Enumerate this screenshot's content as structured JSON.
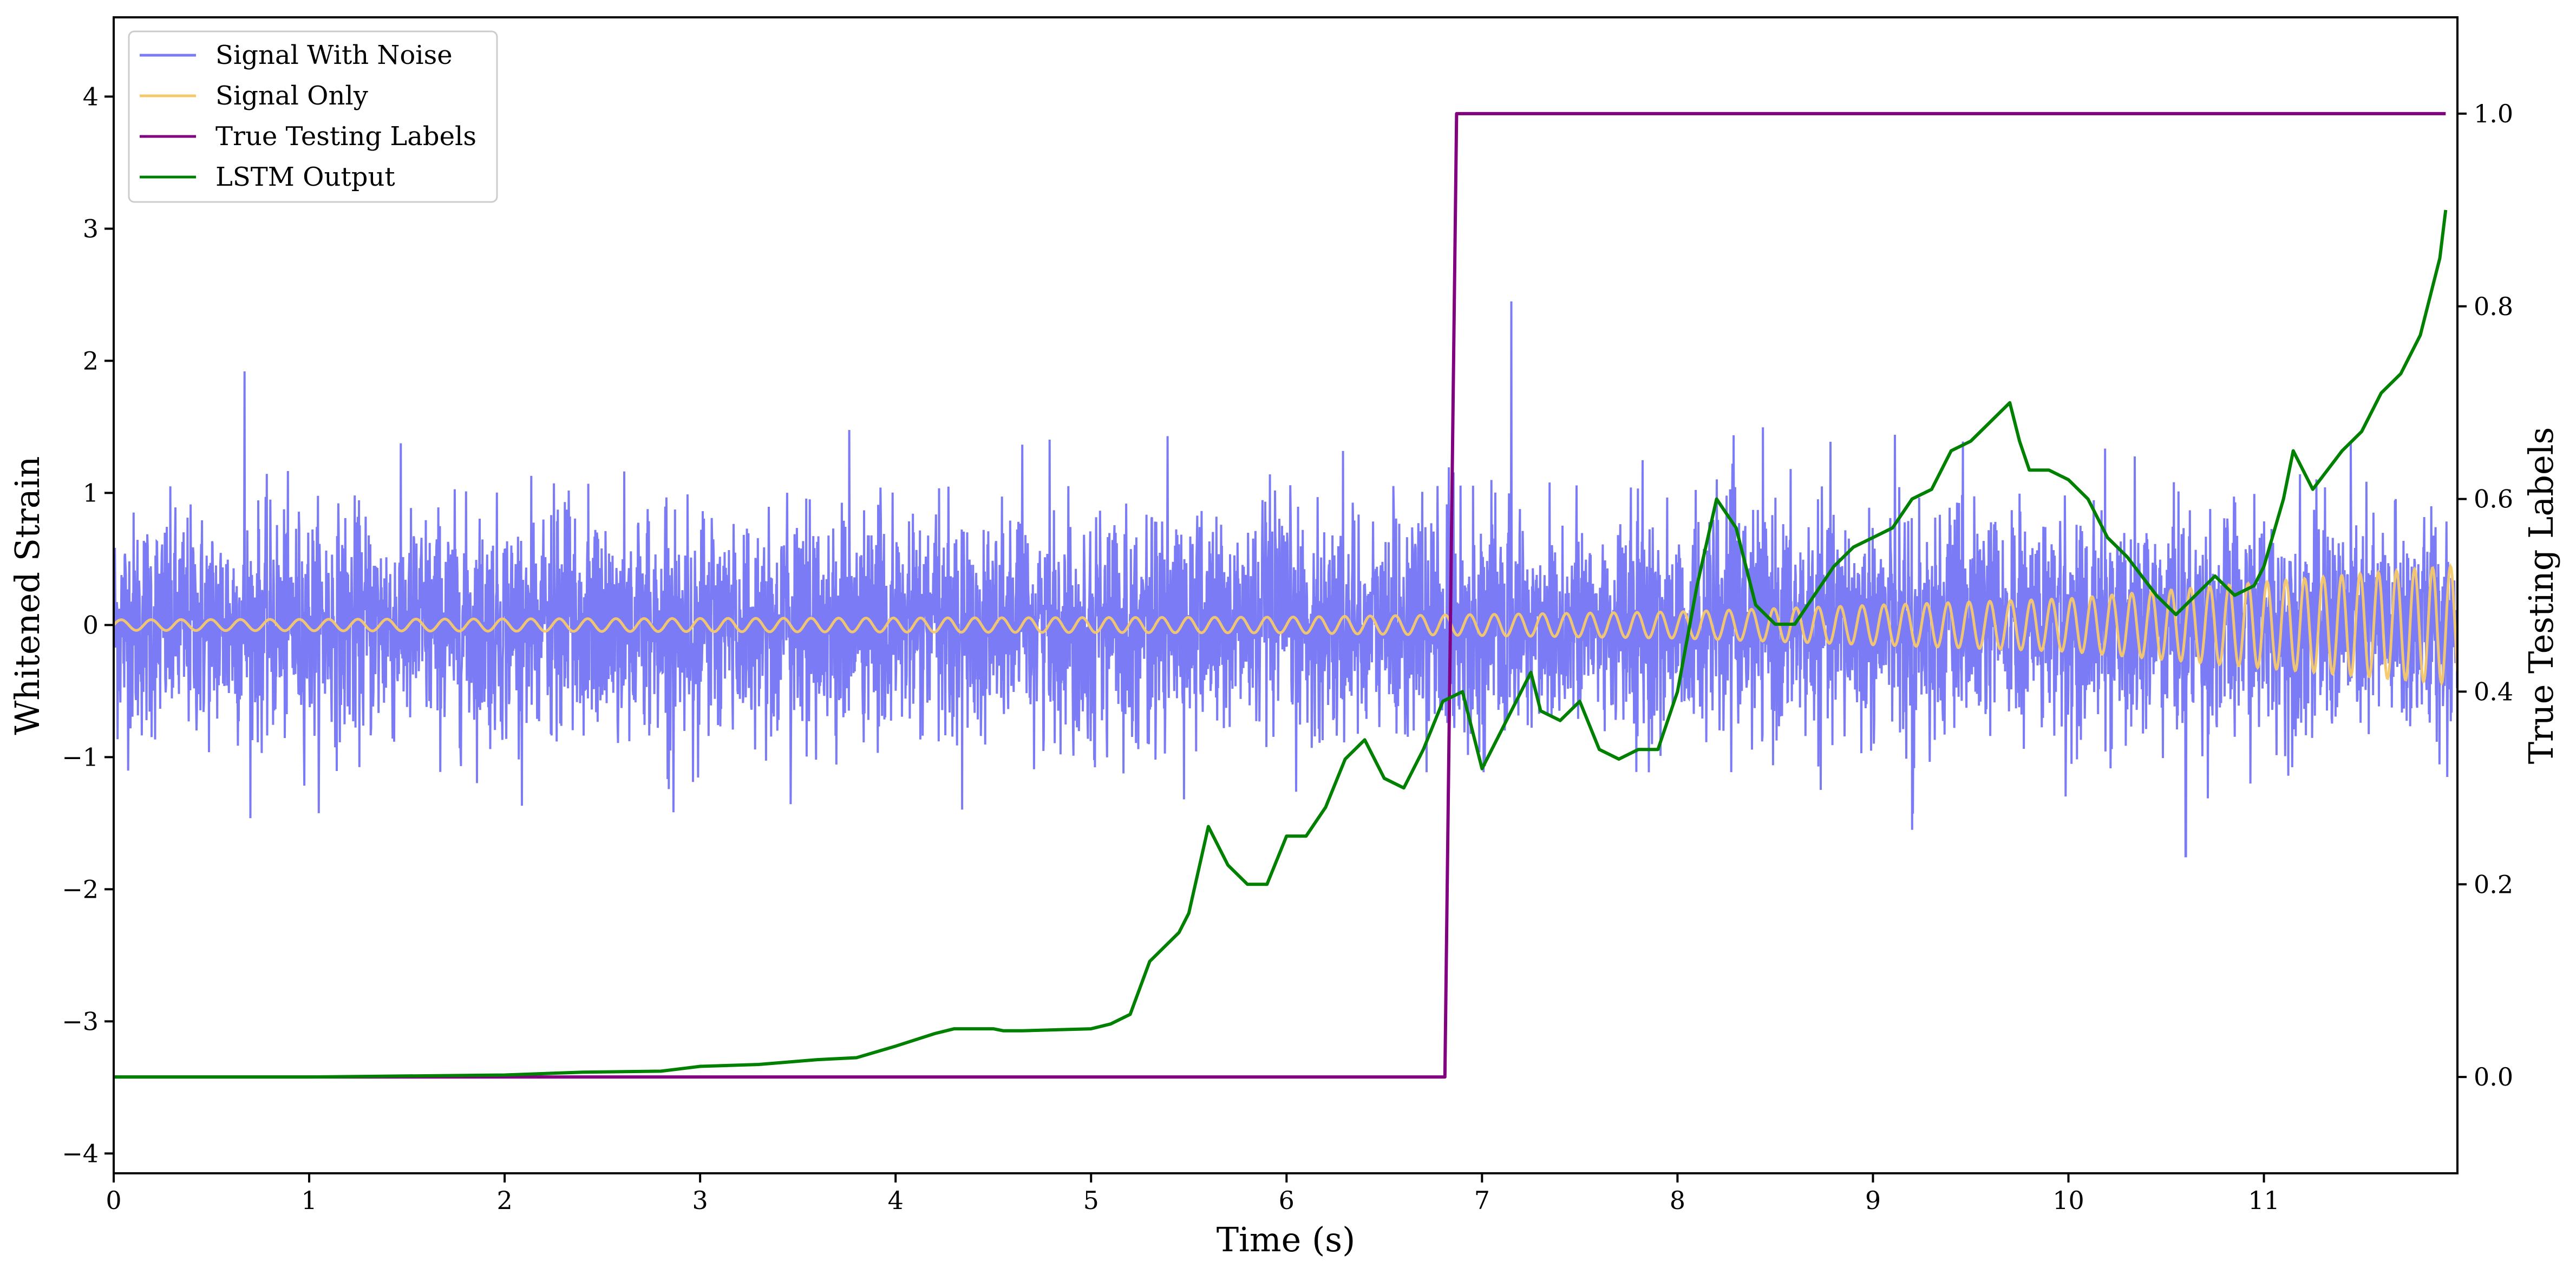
{
  "chart_data": {
    "type": "line",
    "xlabel": "Time (s)",
    "ylabel_left": "Whitened Strain",
    "ylabel_right": "True Testing Labels",
    "xlim": [
      0,
      11.99
    ],
    "ylim_left": [
      -4.15,
      4.6
    ],
    "ylim_right": [
      -0.1,
      1.1
    ],
    "x_ticks": [
      {
        "value": 0,
        "label": "0"
      },
      {
        "value": 1,
        "label": "1"
      },
      {
        "value": 2,
        "label": "2"
      },
      {
        "value": 3,
        "label": "3"
      },
      {
        "value": 4,
        "label": "4"
      },
      {
        "value": 5,
        "label": "5"
      },
      {
        "value": 6,
        "label": "6"
      },
      {
        "value": 7,
        "label": "7"
      },
      {
        "value": 8,
        "label": "8"
      },
      {
        "value": 9,
        "label": "9"
      },
      {
        "value": 10,
        "label": "10"
      },
      {
        "value": 11,
        "label": "11"
      }
    ],
    "y_ticks_left": [
      {
        "value": -4,
        "label": "−4"
      },
      {
        "value": -3,
        "label": "−3"
      },
      {
        "value": -2,
        "label": "−2"
      },
      {
        "value": -1,
        "label": "−1"
      },
      {
        "value": 0,
        "label": "0"
      },
      {
        "value": 1,
        "label": "1"
      },
      {
        "value": 2,
        "label": "2"
      },
      {
        "value": 3,
        "label": "3"
      },
      {
        "value": 4,
        "label": "4"
      }
    ],
    "y_ticks_right": [
      {
        "value": 0.0,
        "label": "0.0"
      },
      {
        "value": 0.2,
        "label": "0.2"
      },
      {
        "value": 0.4,
        "label": "0.4"
      },
      {
        "value": 0.6,
        "label": "0.6"
      },
      {
        "value": 0.8,
        "label": "0.8"
      },
      {
        "value": 1.0,
        "label": "1.0"
      }
    ],
    "grid": false,
    "legend_position": "top-left",
    "series": [
      {
        "name": "Signal With Noise",
        "axis": "left",
        "color": "#7b7bf5",
        "kind": "noise",
        "std": 0.42,
        "envelope_max": 1.5,
        "notable_spikes": [
          {
            "x": 0.67,
            "y": 1.92
          },
          {
            "x": 7.15,
            "y": 2.45
          },
          {
            "x": 9.2,
            "y": -1.55
          },
          {
            "x": 10.6,
            "y": -1.75
          }
        ]
      },
      {
        "name": "Signal Only",
        "axis": "left",
        "color": "#f5c96b",
        "kind": "chirp",
        "amplitude_points": [
          [
            0,
            0.04
          ],
          [
            6,
            0.06
          ],
          [
            8,
            0.1
          ],
          [
            10,
            0.2
          ],
          [
            11.99,
            0.45
          ]
        ],
        "frequency_points": [
          [
            0,
            6.5
          ],
          [
            6,
            7.5
          ],
          [
            9,
            9.0
          ],
          [
            11.99,
            11.0
          ]
        ]
      },
      {
        "name": "True Testing Labels",
        "axis": "right",
        "color": "#800080",
        "kind": "line",
        "points": [
          [
            0,
            0.0
          ],
          [
            6.81,
            0.0
          ],
          [
            6.87,
            1.0
          ],
          [
            11.93,
            1.0
          ]
        ]
      },
      {
        "name": "LSTM Output",
        "axis": "right",
        "color": "#008000",
        "kind": "line",
        "points": [
          [
            0,
            0.0
          ],
          [
            1.0,
            0.0
          ],
          [
            1.5,
            0.001
          ],
          [
            2.0,
            0.002
          ],
          [
            2.4,
            0.005
          ],
          [
            2.8,
            0.006
          ],
          [
            3.0,
            0.011
          ],
          [
            3.3,
            0.013
          ],
          [
            3.6,
            0.018
          ],
          [
            3.8,
            0.02
          ],
          [
            4.0,
            0.032
          ],
          [
            4.2,
            0.045
          ],
          [
            4.3,
            0.05
          ],
          [
            4.5,
            0.05
          ],
          [
            4.55,
            0.048
          ],
          [
            4.65,
            0.048
          ],
          [
            5.0,
            0.05
          ],
          [
            5.1,
            0.055
          ],
          [
            5.2,
            0.065
          ],
          [
            5.3,
            0.12
          ],
          [
            5.45,
            0.15
          ],
          [
            5.5,
            0.17
          ],
          [
            5.6,
            0.26
          ],
          [
            5.7,
            0.22
          ],
          [
            5.8,
            0.2
          ],
          [
            5.9,
            0.2
          ],
          [
            6.0,
            0.25
          ],
          [
            6.1,
            0.25
          ],
          [
            6.2,
            0.28
          ],
          [
            6.3,
            0.33
          ],
          [
            6.4,
            0.35
          ],
          [
            6.5,
            0.31
          ],
          [
            6.6,
            0.3
          ],
          [
            6.7,
            0.34
          ],
          [
            6.8,
            0.39
          ],
          [
            6.9,
            0.4
          ],
          [
            7.0,
            0.32
          ],
          [
            7.1,
            0.36
          ],
          [
            7.25,
            0.42
          ],
          [
            7.3,
            0.38
          ],
          [
            7.4,
            0.37
          ],
          [
            7.5,
            0.39
          ],
          [
            7.6,
            0.34
          ],
          [
            7.7,
            0.33
          ],
          [
            7.8,
            0.34
          ],
          [
            7.9,
            0.34
          ],
          [
            8.0,
            0.4
          ],
          [
            8.1,
            0.51
          ],
          [
            8.2,
            0.6
          ],
          [
            8.3,
            0.57
          ],
          [
            8.4,
            0.49
          ],
          [
            8.5,
            0.47
          ],
          [
            8.6,
            0.47
          ],
          [
            8.7,
            0.5
          ],
          [
            8.8,
            0.53
          ],
          [
            8.9,
            0.55
          ],
          [
            9.0,
            0.56
          ],
          [
            9.1,
            0.57
          ],
          [
            9.2,
            0.6
          ],
          [
            9.3,
            0.61
          ],
          [
            9.4,
            0.65
          ],
          [
            9.5,
            0.66
          ],
          [
            9.6,
            0.68
          ],
          [
            9.7,
            0.7
          ],
          [
            9.75,
            0.66
          ],
          [
            9.8,
            0.63
          ],
          [
            9.9,
            0.63
          ],
          [
            10.0,
            0.62
          ],
          [
            10.1,
            0.6
          ],
          [
            10.2,
            0.56
          ],
          [
            10.3,
            0.54
          ],
          [
            10.45,
            0.5
          ],
          [
            10.55,
            0.48
          ],
          [
            10.65,
            0.5
          ],
          [
            10.75,
            0.52
          ],
          [
            10.85,
            0.5
          ],
          [
            10.95,
            0.51
          ],
          [
            11.0,
            0.53
          ],
          [
            11.1,
            0.6
          ],
          [
            11.15,
            0.65
          ],
          [
            11.25,
            0.61
          ],
          [
            11.4,
            0.65
          ],
          [
            11.5,
            0.67
          ],
          [
            11.6,
            0.71
          ],
          [
            11.7,
            0.73
          ],
          [
            11.8,
            0.77
          ],
          [
            11.9,
            0.85
          ],
          [
            11.93,
            0.9
          ]
        ]
      }
    ]
  }
}
